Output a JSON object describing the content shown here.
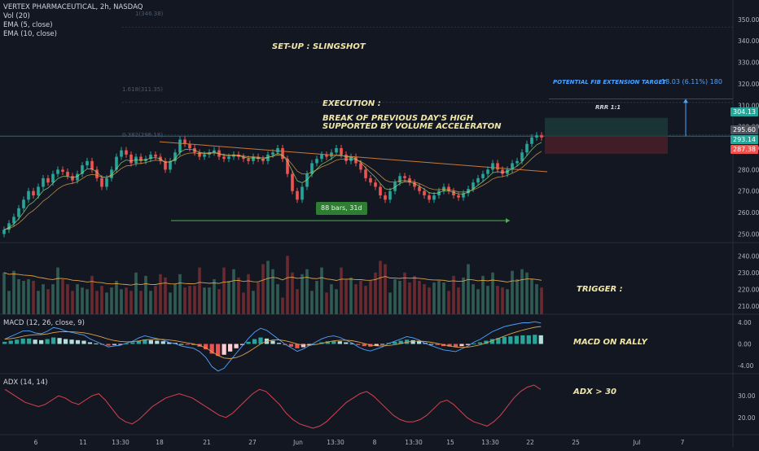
{
  "header": {
    "symbol": "VERTEX PHARMACEUTICAL, 2h, NASDAQ",
    "indicators": [
      "Vol (20)",
      "EMA (5, close)",
      "EMA (10, close)"
    ]
  },
  "panes": {
    "macd_label": "MACD (12, 26, close, 9)",
    "adx_label": "ADX (14, 14)"
  },
  "annotations": {
    "setup": "SET-UP : SLINGSHOT",
    "execution_title": "EXECUTION :",
    "execution_line1": "BREAK OF PREVIOUS DAY'S HIGH",
    "execution_line2": "SUPPORTED BY VOLUME ACCELERATON",
    "trigger": "TRIGGER :",
    "macd_note": "MACD ON RALLY",
    "adx_note": "ADX > 30",
    "fib_target_label": "POTENTIAL FIB EXTENSION TARGET",
    "fib_target_value": "18.03 (6.11%) 180",
    "rrr": "RRR 1:1",
    "bars_range": "88 bars, 31d",
    "fib_levels": [
      "1(346.38)",
      "1.618(311.35)",
      "0.382(296.18)"
    ]
  },
  "price_boxes": {
    "target": "304.13",
    "current": "295.60",
    "entry": "293.14",
    "stop": "287.38"
  },
  "colors": {
    "background": "#131722",
    "up": "#26a69a",
    "down": "#ef5350",
    "vol_up": "#2f5b52",
    "vol_down": "#6b2a30",
    "ema_fast": "#4da3ff",
    "ema_slow": "#d8a24a",
    "adx_line": "#d9424e",
    "annotation": "#f0e6a6",
    "target_blue": "#4da3ff",
    "tag_green": "#2e7d32"
  },
  "chart_data": [
    {
      "type": "candlestick",
      "title": "VERTEX PHARMACEUTICAL, 2h, NASDAQ",
      "x_ticks": [
        "6",
        "11",
        "13:30",
        "18",
        "21",
        "27",
        "Jun",
        "13:30",
        "8",
        "13:30",
        "15",
        "13:30",
        "22",
        "25",
        "Jul",
        "7"
      ],
      "y_ticks": [
        250,
        260,
        270,
        280,
        290,
        300,
        310,
        320,
        330,
        340,
        350
      ],
      "ylim": [
        246,
        356
      ],
      "closes": [
        252,
        255,
        258,
        262,
        266,
        270,
        268,
        272,
        276,
        274,
        278,
        280,
        279,
        277,
        275,
        278,
        282,
        284,
        280,
        276,
        272,
        276,
        280,
        286,
        289,
        287,
        283,
        286,
        284,
        285,
        287,
        286,
        284,
        280,
        284,
        288,
        294,
        292,
        290,
        288,
        286,
        287,
        288,
        289,
        286,
        285,
        286,
        287,
        286,
        285,
        284,
        286,
        285,
        284,
        287,
        288,
        290,
        285,
        278,
        270,
        266,
        272,
        278,
        283,
        285,
        287,
        286,
        288,
        290,
        287,
        284,
        286,
        283,
        280,
        276,
        274,
        272,
        268,
        266,
        270,
        274,
        277,
        276,
        274,
        272,
        270,
        268,
        266,
        268,
        270,
        272,
        270,
        268,
        267,
        269,
        271,
        274,
        276,
        278,
        280,
        283,
        280,
        278,
        280,
        283,
        284,
        288,
        292,
        295,
        296,
        295
      ],
      "overlays": [
        "EMA (5, close)",
        "EMA (10, close)"
      ]
    },
    {
      "type": "bar",
      "title": "Vol (20)",
      "y_ticks": [
        210,
        220,
        230,
        240
      ],
      "values": [
        230,
        219,
        231,
        226,
        225,
        226,
        225,
        219,
        223,
        220,
        223,
        233,
        226,
        223,
        219,
        223,
        221,
        220,
        228,
        219,
        222,
        218,
        221,
        225,
        220,
        221,
        219,
        230,
        219,
        228,
        219,
        222,
        229,
        227,
        218,
        223,
        229,
        221,
        222,
        222,
        233,
        221,
        221,
        226,
        220,
        233,
        225,
        232,
        227,
        218,
        229,
        219,
        224,
        235,
        237,
        232,
        223,
        215,
        240,
        230,
        220,
        229,
        232,
        219,
        225,
        233,
        218,
        223,
        220,
        233,
        226,
        227,
        223,
        225,
        222,
        225,
        230,
        237,
        235,
        218,
        226,
        225,
        230,
        224,
        228,
        225,
        223,
        221,
        224,
        225,
        224,
        219,
        228,
        221,
        227,
        235,
        223,
        220,
        228,
        222,
        230,
        222,
        221,
        220,
        231,
        226,
        232,
        230,
        226,
        223,
        221
      ]
    },
    {
      "type": "bar",
      "title": "MACD (12, 26, close, 9)",
      "y_ticks": [
        -4.0,
        0.0,
        4.0
      ],
      "values": [
        0.4,
        0.6,
        0.8,
        1.0,
        1.0,
        0.8,
        0.7,
        0.9,
        1.2,
        1.1,
        0.9,
        0.8,
        0.7,
        0.6,
        0.3,
        0.1,
        -0.1,
        -0.3,
        -0.2,
        -0.1,
        0.1,
        0.3,
        0.6,
        0.8,
        0.7,
        0.6,
        0.5,
        0.3,
        0.2,
        0.0,
        -0.1,
        -0.2,
        -0.5,
        -1.0,
        -1.8,
        -2.2,
        -2.0,
        -1.4,
        -0.8,
        -0.2,
        0.4,
        0.9,
        1.2,
        1.0,
        0.6,
        0.2,
        -0.2,
        -0.5,
        -0.8,
        -0.6,
        -0.3,
        0.0,
        0.3,
        0.5,
        0.6,
        0.5,
        0.3,
        0.1,
        -0.2,
        -0.4,
        -0.5,
        -0.3,
        -0.1,
        0.2,
        0.4,
        0.6,
        0.8,
        0.7,
        0.5,
        0.2,
        0.0,
        -0.2,
        -0.4,
        -0.5,
        -0.6,
        -0.4,
        -0.2,
        0.1,
        0.3,
        0.6,
        0.9,
        1.1,
        1.3,
        1.4,
        1.5,
        1.6,
        1.6,
        1.7,
        1.6
      ]
    },
    {
      "type": "line",
      "title": "ADX (14, 14)",
      "y_ticks": [
        20.0,
        30.0
      ],
      "values": [
        33,
        31,
        29,
        27,
        26,
        25,
        26,
        28,
        30,
        29,
        27,
        26,
        28,
        30,
        31,
        28,
        24,
        20,
        18,
        17,
        19,
        22,
        25,
        27,
        29,
        30,
        31,
        30,
        29,
        27,
        25,
        23,
        21,
        20,
        22,
        25,
        28,
        31,
        33,
        32,
        29,
        26,
        22,
        19,
        17,
        16,
        15,
        16,
        18,
        21,
        24,
        27,
        29,
        31,
        32,
        30,
        27,
        24,
        21,
        19,
        18,
        18,
        19,
        21,
        24,
        27,
        28,
        26,
        23,
        20,
        18,
        17,
        16,
        18,
        21,
        25,
        29,
        32,
        34,
        35,
        33
      ]
    }
  ]
}
